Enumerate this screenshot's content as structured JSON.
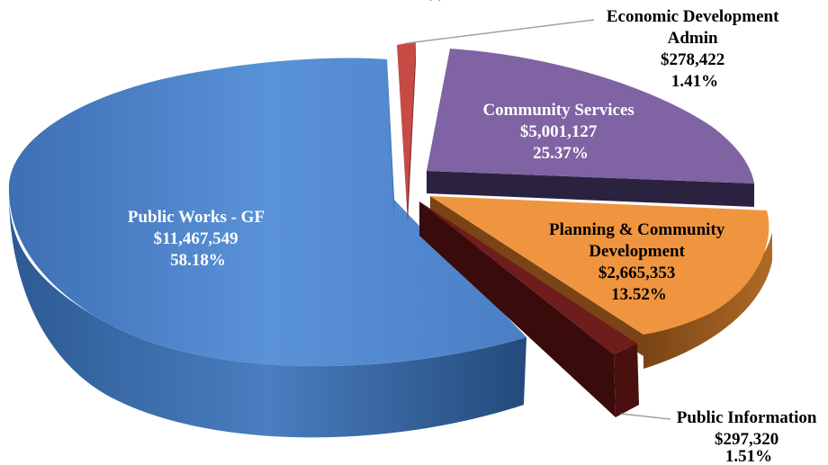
{
  "chart_data": {
    "type": "pie",
    "style": "3d-exploded",
    "legend": "none",
    "slices": [
      {
        "name": "Public Works - GF",
        "value_label": "$11,467,549",
        "pct_label": "58.18%",
        "value": 11467549,
        "pct": 58.18,
        "color": "#4f86d0",
        "side": "#2f5f9c",
        "dark": "#24497a"
      },
      {
        "name": "Economic Development Admin",
        "value_label": "$278,422",
        "pct_label": "1.41%",
        "value": 278422,
        "pct": 1.41,
        "color": "#c84a45",
        "side": "#8e2f2c",
        "dark": "#6f2320"
      },
      {
        "name": "Community Services",
        "value_label": "$5,001,127",
        "pct_label": "25.37%",
        "value": 5001127,
        "pct": 25.37,
        "color": "#7f63a3",
        "side": "#4f3b6b",
        "dark": "#2b2240"
      },
      {
        "name": "Planning & Community Development",
        "value_label": "$2,665,353",
        "pct_label": "13.52%",
        "value": 2665353,
        "pct": 13.52,
        "color": "#f0953f",
        "side": "#9e5b20",
        "dark": "#7a4416"
      },
      {
        "name": "Public Information",
        "value_label": "$297,320",
        "pct_label": "1.51%",
        "value": 297320,
        "pct": 1.51,
        "color": "#6e1c1c",
        "side": "#4a1010",
        "dark": "#3a0b0b"
      }
    ]
  }
}
